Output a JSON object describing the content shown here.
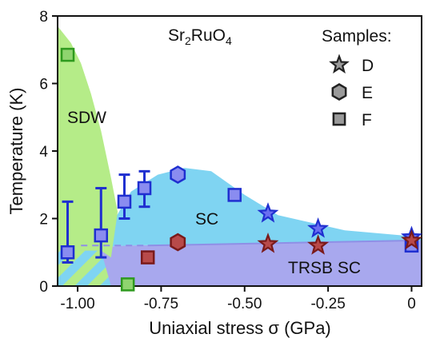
{
  "chart_data": {
    "type": "scatter",
    "title": "Sr2RuO4",
    "title_parts": {
      "a": "Sr",
      "b": "2",
      "c": "RuO",
      "d": "4"
    },
    "xlabel": "Uniaxial stress σ (GPa)",
    "ylabel": "Temperature (K)",
    "xlim": [
      -1.06,
      0.03
    ],
    "ylim": [
      0,
      8
    ],
    "xticks": [
      -1.0,
      -0.75,
      -0.5,
      -0.25,
      0
    ],
    "xtick_labels": [
      "-1.00",
      "-0.75",
      "-0.50",
      "-0.25",
      "0"
    ],
    "yticks": [
      0,
      2,
      4,
      6,
      8
    ],
    "ytick_labels": [
      "0",
      "2",
      "4",
      "6",
      "8"
    ],
    "grid": false,
    "regions": [
      {
        "label": "SDW",
        "color": "#b5ec88"
      },
      {
        "label": "SC",
        "color": "#7fd4f2"
      },
      {
        "label": "TRSB SC",
        "color": "#a8a8ee"
      }
    ],
    "legend": {
      "title": "Samples:",
      "placement": "top-right",
      "entries": [
        {
          "label": "D",
          "marker": "star"
        },
        {
          "label": "E",
          "marker": "hexagon"
        },
        {
          "label": "F",
          "marker": "square"
        }
      ]
    },
    "series": [
      {
        "name": "F",
        "marker": "square",
        "role": "SC transition",
        "points": [
          {
            "x": -1.03,
            "y": 1.0,
            "err": [
              0.7,
              2.5
            ]
          },
          {
            "x": -0.93,
            "y": 1.5,
            "err": [
              0.85,
              2.9
            ]
          },
          {
            "x": -0.86,
            "y": 2.5,
            "err": [
              2.0,
              3.3
            ]
          },
          {
            "x": -0.8,
            "y": 2.9,
            "err": [
              2.35,
              3.4
            ]
          },
          {
            "x": -0.53,
            "y": 2.7
          },
          {
            "x": 0.0,
            "y": 1.2
          }
        ],
        "color": "#8a8cf0"
      },
      {
        "name": "F",
        "marker": "square",
        "role": "SDW transition",
        "points": [
          {
            "x": -1.03,
            "y": 6.85
          },
          {
            "x": -0.85,
            "y": 0.05
          }
        ],
        "color": "#8fd46f"
      },
      {
        "name": "F",
        "marker": "square",
        "role": "TRSB transition",
        "points": [
          {
            "x": -0.79,
            "y": 0.85
          }
        ],
        "color": "#b84a4a"
      },
      {
        "name": "E",
        "marker": "hexagon",
        "role": "SC transition",
        "points": [
          {
            "x": -0.7,
            "y": 3.3
          }
        ],
        "color": "#8a8cf0"
      },
      {
        "name": "E",
        "marker": "hexagon",
        "role": "TRSB transition",
        "points": [
          {
            "x": -0.7,
            "y": 1.3
          }
        ],
        "color": "#b84a4a"
      },
      {
        "name": "D",
        "marker": "star",
        "role": "SC transition",
        "points": [
          {
            "x": -0.43,
            "y": 2.15
          },
          {
            "x": -0.28,
            "y": 1.7
          },
          {
            "x": 0.0,
            "y": 1.45
          }
        ],
        "color": "#6a6ef0"
      },
      {
        "name": "D",
        "marker": "star",
        "role": "TRSB transition",
        "points": [
          {
            "x": -0.43,
            "y": 1.25
          },
          {
            "x": -0.28,
            "y": 1.2
          },
          {
            "x": 0.0,
            "y": 1.35
          }
        ],
        "color": "#b84a4a"
      }
    ],
    "colors": {
      "sc_stroke": "#1f2fd0",
      "sdw_stroke": "#2e9a1e",
      "trsb_stroke": "#7a1a1a",
      "legend_fill": "#9a9a9a",
      "legend_stroke": "#222222"
    }
  }
}
